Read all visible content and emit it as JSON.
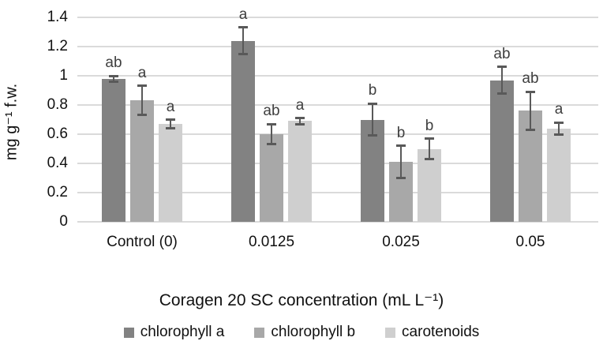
{
  "chart_data": {
    "type": "bar",
    "title": "",
    "xlabel": "Coragen 20 SC concentration (mL L⁻¹)",
    "ylabel": "mg g⁻¹ f.w.",
    "categories": [
      "Control (0)",
      "0.0125",
      "0.025",
      "0.05"
    ],
    "series": [
      {
        "name": "chlorophyll a",
        "color": "#828282",
        "values": [
          0.98,
          1.24,
          0.7,
          0.97
        ],
        "errors": [
          0.02,
          0.09,
          0.11,
          0.09
        ],
        "letters": [
          "ab",
          "a",
          "b",
          "ab"
        ]
      },
      {
        "name": "chlorophyll b",
        "color": "#a8a8a8",
        "values": [
          0.83,
          0.6,
          0.41,
          0.76
        ],
        "errors": [
          0.1,
          0.07,
          0.11,
          0.13
        ],
        "letters": [
          "a",
          "ab",
          "b",
          "ab"
        ]
      },
      {
        "name": "carotenoids",
        "color": "#cfcfcf",
        "values": [
          0.67,
          0.69,
          0.5,
          0.64
        ],
        "errors": [
          0.03,
          0.02,
          0.07,
          0.04
        ],
        "letters": [
          "a",
          "a",
          "b",
          "a"
        ]
      }
    ],
    "ylim": [
      0,
      1.4
    ],
    "yticks": [
      0,
      0.2,
      0.4,
      0.6,
      0.8,
      1,
      1.2,
      1.4
    ],
    "grid": true,
    "legend_position": "bottom",
    "colors": {
      "error_bar": "#595959",
      "gridline": "#dadada",
      "letter": "#3f3f3f",
      "text": "#111111"
    }
  }
}
